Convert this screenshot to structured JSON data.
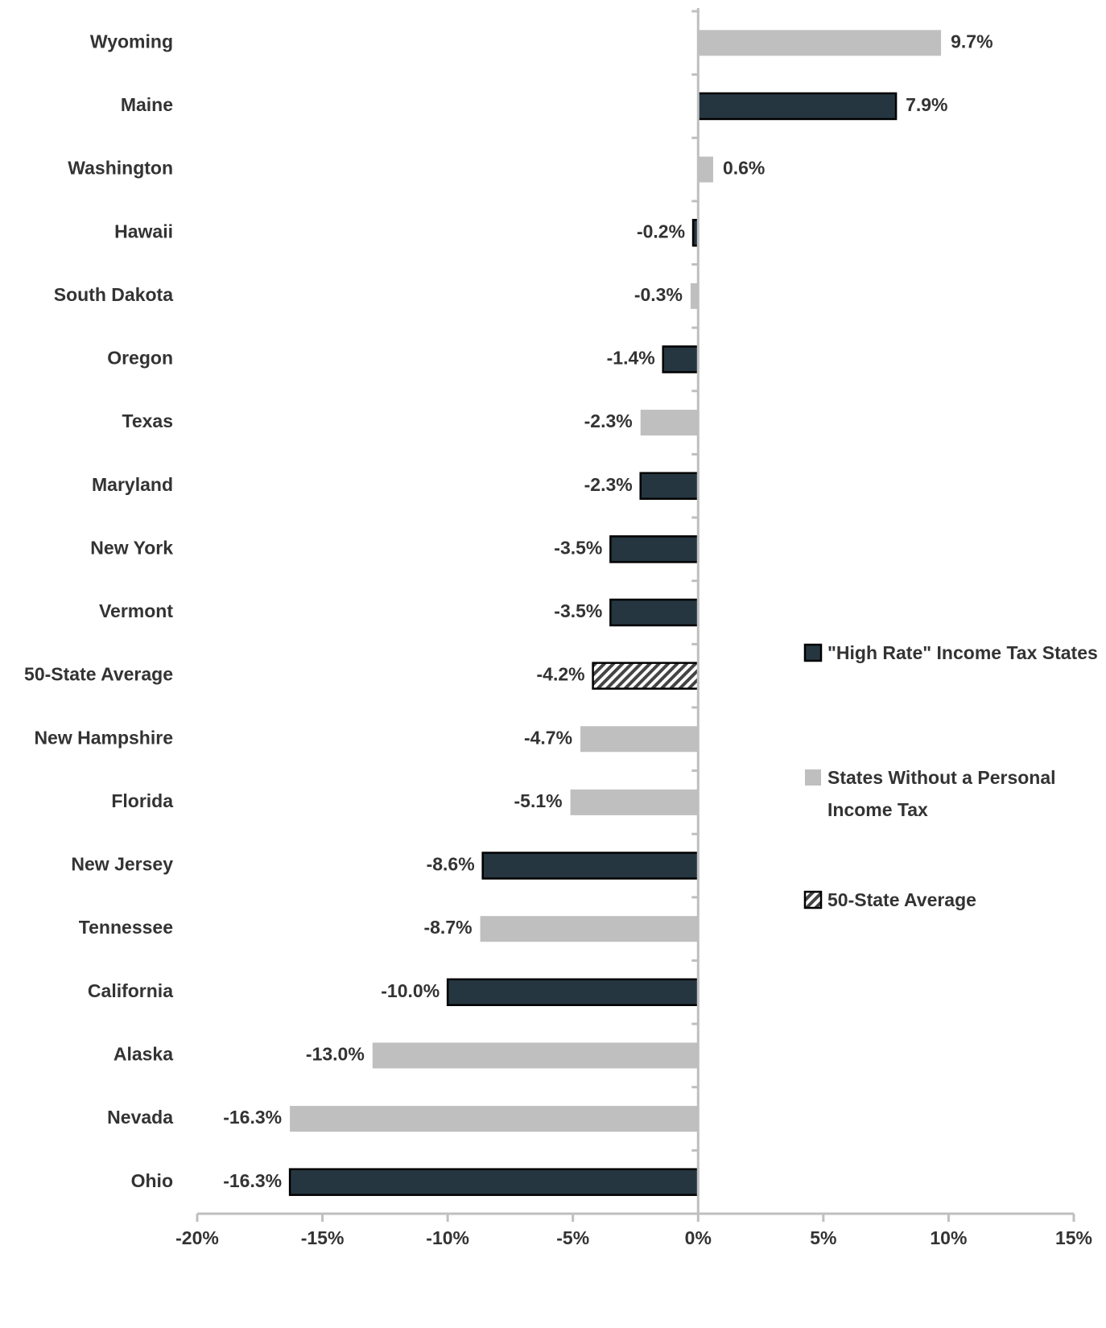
{
  "chart_data": {
    "type": "bar",
    "orientation": "horizontal",
    "categories": [
      "Wyoming",
      "Maine",
      "Washington",
      "Hawaii",
      "South Dakota",
      "Oregon",
      "Texas",
      "Maryland",
      "New York",
      "Vermont",
      "50-State Average",
      "New Hampshire",
      "Florida",
      "New Jersey",
      "Tennessee",
      "California",
      "Alaska",
      "Nevada",
      "Ohio"
    ],
    "series": [
      {
        "name": "\"High Rate\" Income Tax States",
        "color": "#253640",
        "outline": true,
        "hatch": false,
        "values": [
          null,
          7.9,
          null,
          -0.2,
          null,
          -1.4,
          null,
          -2.3,
          -3.5,
          -3.5,
          null,
          null,
          null,
          -8.6,
          null,
          -10.0,
          null,
          null,
          -16.3
        ],
        "value_labels": [
          null,
          "7.9%",
          null,
          "-0.2%",
          null,
          "-1.4%",
          null,
          "-2.3%",
          "-3.5%",
          "-3.5%",
          null,
          null,
          null,
          "-8.6%",
          null,
          "-10.0%",
          null,
          null,
          "-16.3%"
        ]
      },
      {
        "name": "States Without a Personal Income Tax",
        "color": "#bfbfbf",
        "outline": false,
        "hatch": false,
        "values": [
          9.7,
          null,
          0.6,
          null,
          -0.3,
          null,
          -2.3,
          null,
          null,
          null,
          null,
          -4.7,
          -5.1,
          null,
          -8.7,
          null,
          -13.0,
          -16.3,
          null
        ],
        "value_labels": [
          "9.7%",
          null,
          "0.6%",
          null,
          "-0.3%",
          null,
          "-2.3%",
          null,
          null,
          null,
          null,
          "-4.7%",
          "-5.1%",
          null,
          "-8.7%",
          null,
          "-13.0%",
          "-16.3%",
          null
        ]
      },
      {
        "name": "50-State Average",
        "color": "#444444",
        "outline": true,
        "hatch": true,
        "values": [
          null,
          null,
          null,
          null,
          null,
          null,
          null,
          null,
          null,
          null,
          -4.2,
          null,
          null,
          null,
          null,
          null,
          null,
          null,
          null
        ],
        "value_labels": [
          null,
          null,
          null,
          null,
          null,
          null,
          null,
          null,
          null,
          null,
          "-4.2%",
          null,
          null,
          null,
          null,
          null,
          null,
          null,
          null
        ]
      }
    ],
    "xlim": [
      -20,
      15
    ],
    "xticks": [
      {
        "value": -20,
        "label": "-20%"
      },
      {
        "value": -15,
        "label": "-15%"
      },
      {
        "value": -10,
        "label": "-10%"
      },
      {
        "value": -5,
        "label": "-5%"
      },
      {
        "value": 0,
        "label": "0%"
      },
      {
        "value": 5,
        "label": "5%"
      },
      {
        "value": 10,
        "label": "10%"
      },
      {
        "value": 15,
        "label": "15%"
      }
    ],
    "grid": false,
    "legend": "right"
  }
}
